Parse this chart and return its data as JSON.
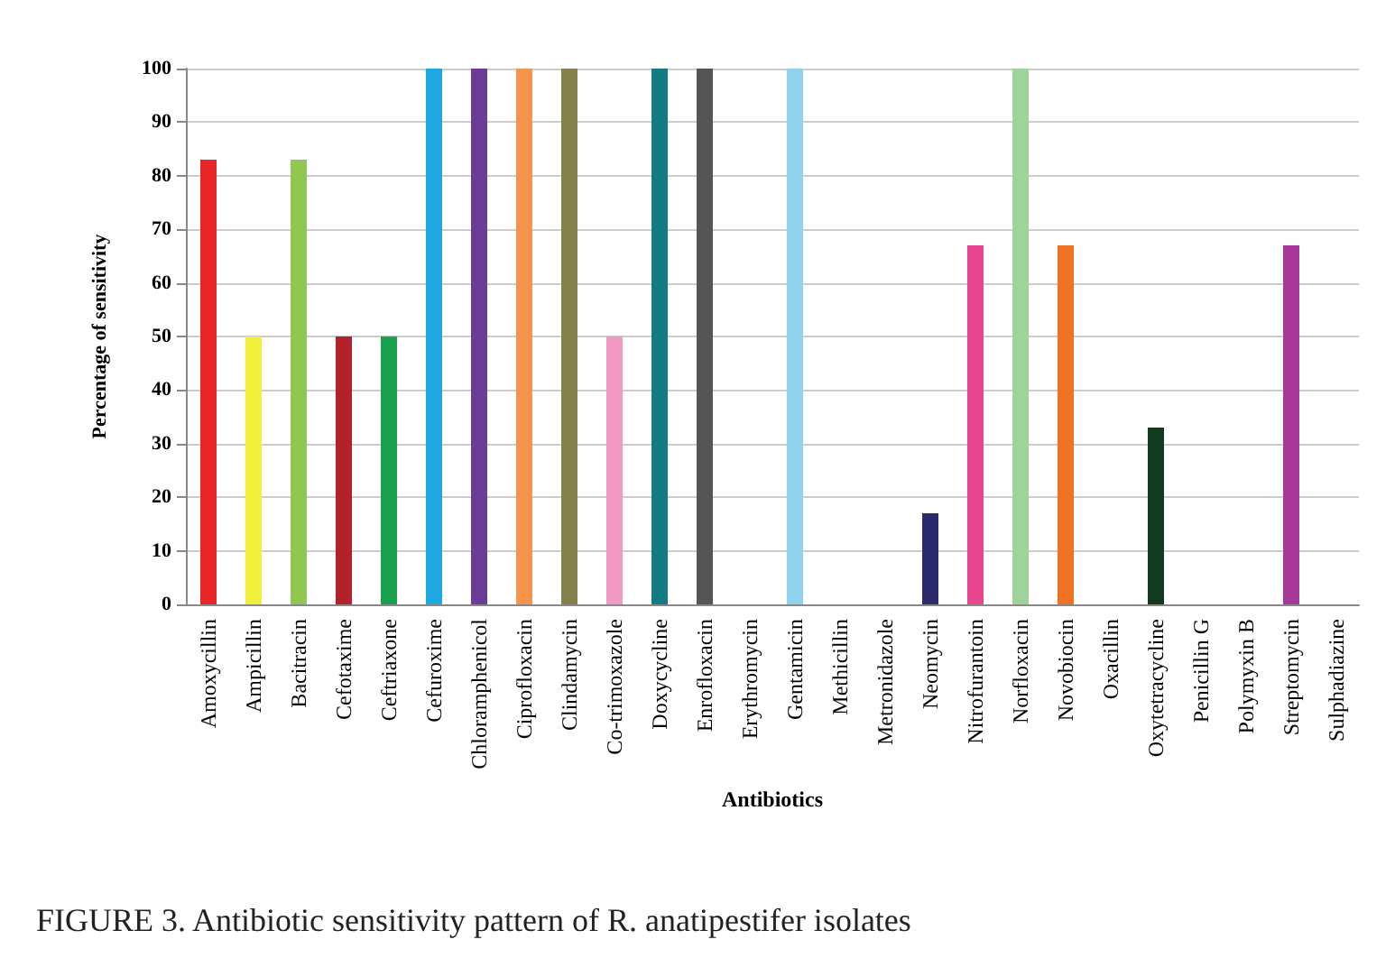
{
  "chart_data": {
    "type": "bar",
    "xlabel": "Antibiotics",
    "ylabel": "Percentage of sensitivity",
    "categories": [
      "Amoxycillin",
      "Ampicillin",
      "Bacitracin",
      "Cefotaxime",
      "Ceftriaxone",
      "Cefuroxime",
      "Chloramphenicol",
      "Ciprofloxacin",
      "Clindamycin",
      "Co-trimoxazole",
      "Doxycycline",
      "Enrofloxacin",
      "Erythromycin",
      "Gentamicin",
      "Methicillin",
      "Metronidazole",
      "Neomycin",
      "Nitrofurantoin",
      "Norfloxacin",
      "Novobiocin",
      "Oxacillin",
      "Oxytetracycline",
      "Penicillin G",
      "Polymyxin B",
      "Streptomycin",
      "Sulphadiazine"
    ],
    "values": [
      83,
      50,
      83,
      50,
      50,
      100,
      100,
      100,
      100,
      50,
      100,
      100,
      0,
      100,
      0,
      0,
      17,
      67,
      100,
      67,
      0,
      33,
      0,
      0,
      67,
      0
    ],
    "colors": [
      "#e8262a",
      "#f0ef3a",
      "#8fc850",
      "#b3212b",
      "#1aa14b",
      "#1ea7e1",
      "#6a3c97",
      "#f5944a",
      "#85814c",
      "#f29ac4",
      "#137b81",
      "#555558",
      "#d8d8e8",
      "#8fd3ee",
      "#2a2a40",
      "#7a7a5a",
      "#2a2a6c",
      "#e8478f",
      "#9ed49a",
      "#f07324",
      "#e0e0e0",
      "#123a1e",
      "#2aa84a",
      "#2a5aa8",
      "#a73799",
      "#a0282a"
    ],
    "ylim": [
      0,
      100
    ],
    "yticks": [
      0,
      10,
      20,
      30,
      40,
      50,
      60,
      70,
      80,
      90,
      100
    ],
    "grid": "y",
    "annotations": [
      "FIGURE 3. Antibiotic sensitivity pattern of R. anatipestifer isolates"
    ]
  }
}
